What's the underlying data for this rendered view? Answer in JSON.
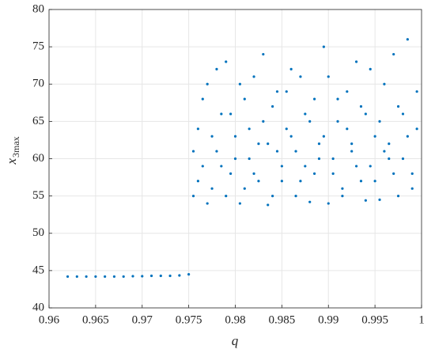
{
  "chart_data": {
    "type": "scatter",
    "xlabel": "q",
    "ylabel": "x",
    "ylabel_subscript": "3max",
    "xlim": [
      0.96,
      1
    ],
    "ylim": [
      40,
      80
    ],
    "xticks": [
      0.96,
      0.965,
      0.97,
      0.975,
      0.98,
      0.985,
      0.99,
      0.995,
      1
    ],
    "yticks": [
      40,
      45,
      50,
      55,
      60,
      65,
      70,
      75,
      80
    ],
    "grid": true,
    "series": [
      {
        "color": "#0072bd",
        "x": [
          0.962,
          0.963,
          0.964,
          0.965,
          0.966,
          0.967,
          0.968,
          0.969,
          0.97,
          0.971,
          0.972,
          0.973,
          0.974,
          0.975,
          0.9755,
          0.976,
          0.9765,
          0.977,
          0.9775,
          0.978,
          0.9785,
          0.979,
          0.9795,
          0.98,
          0.9805,
          0.981,
          0.9815,
          0.982,
          0.9825,
          0.983,
          0.9835,
          0.984,
          0.9845,
          0.985,
          0.9855,
          0.986,
          0.9865,
          0.987,
          0.9875,
          0.988,
          0.9885,
          0.989,
          0.9895,
          0.99,
          0.9905,
          0.991,
          0.9915,
          0.992,
          0.9925,
          0.993,
          0.9935,
          0.994,
          0.9945,
          0.995,
          0.9955,
          0.996,
          0.9965,
          0.997,
          0.9975,
          0.998,
          0.9985,
          0.999,
          0.9995,
          0.9755,
          0.976,
          0.9765,
          0.977,
          0.9775,
          0.978,
          0.9785,
          0.979,
          0.9795,
          0.98,
          0.9805,
          0.981,
          0.9815,
          0.982,
          0.9825,
          0.983,
          0.9835,
          0.984,
          0.9845,
          0.985,
          0.9855,
          0.986,
          0.9865,
          0.987,
          0.9875,
          0.988,
          0.9885,
          0.989,
          0.9895,
          0.99,
          0.9905,
          0.991,
          0.9915,
          0.992,
          0.9925,
          0.993,
          0.9935,
          0.994,
          0.9945,
          0.995,
          0.9955,
          0.996,
          0.9965,
          0.997,
          0.9975,
          0.998,
          0.9985,
          0.999,
          0.9995
        ],
        "y": [
          44.2,
          44.2,
          44.2,
          44.2,
          44.2,
          44.2,
          44.2,
          44.25,
          44.25,
          44.3,
          44.3,
          44.3,
          44.35,
          44.5,
          61,
          57,
          68,
          54,
          63,
          72,
          59,
          55,
          66,
          60,
          70,
          56,
          64,
          58,
          62,
          74,
          53.8,
          67,
          61,
          57,
          69,
          63,
          55,
          71,
          59,
          65,
          58,
          62,
          75,
          54,
          60,
          68,
          56,
          64,
          61,
          73,
          57,
          66,
          59,
          63,
          54.5,
          70,
          62,
          58,
          67,
          60,
          76,
          56,
          64,
          55,
          64,
          59,
          70,
          56,
          61,
          66,
          73,
          58,
          63,
          54,
          68,
          60,
          71,
          57,
          65,
          62,
          55,
          69,
          59,
          64,
          72,
          61,
          57,
          66,
          54.2,
          68,
          60,
          63,
          71,
          58,
          65,
          55,
          69,
          62,
          59,
          67,
          54.4,
          72,
          57,
          65,
          61,
          60,
          74,
          55,
          66,
          63,
          58,
          69
        ]
      }
    ]
  }
}
